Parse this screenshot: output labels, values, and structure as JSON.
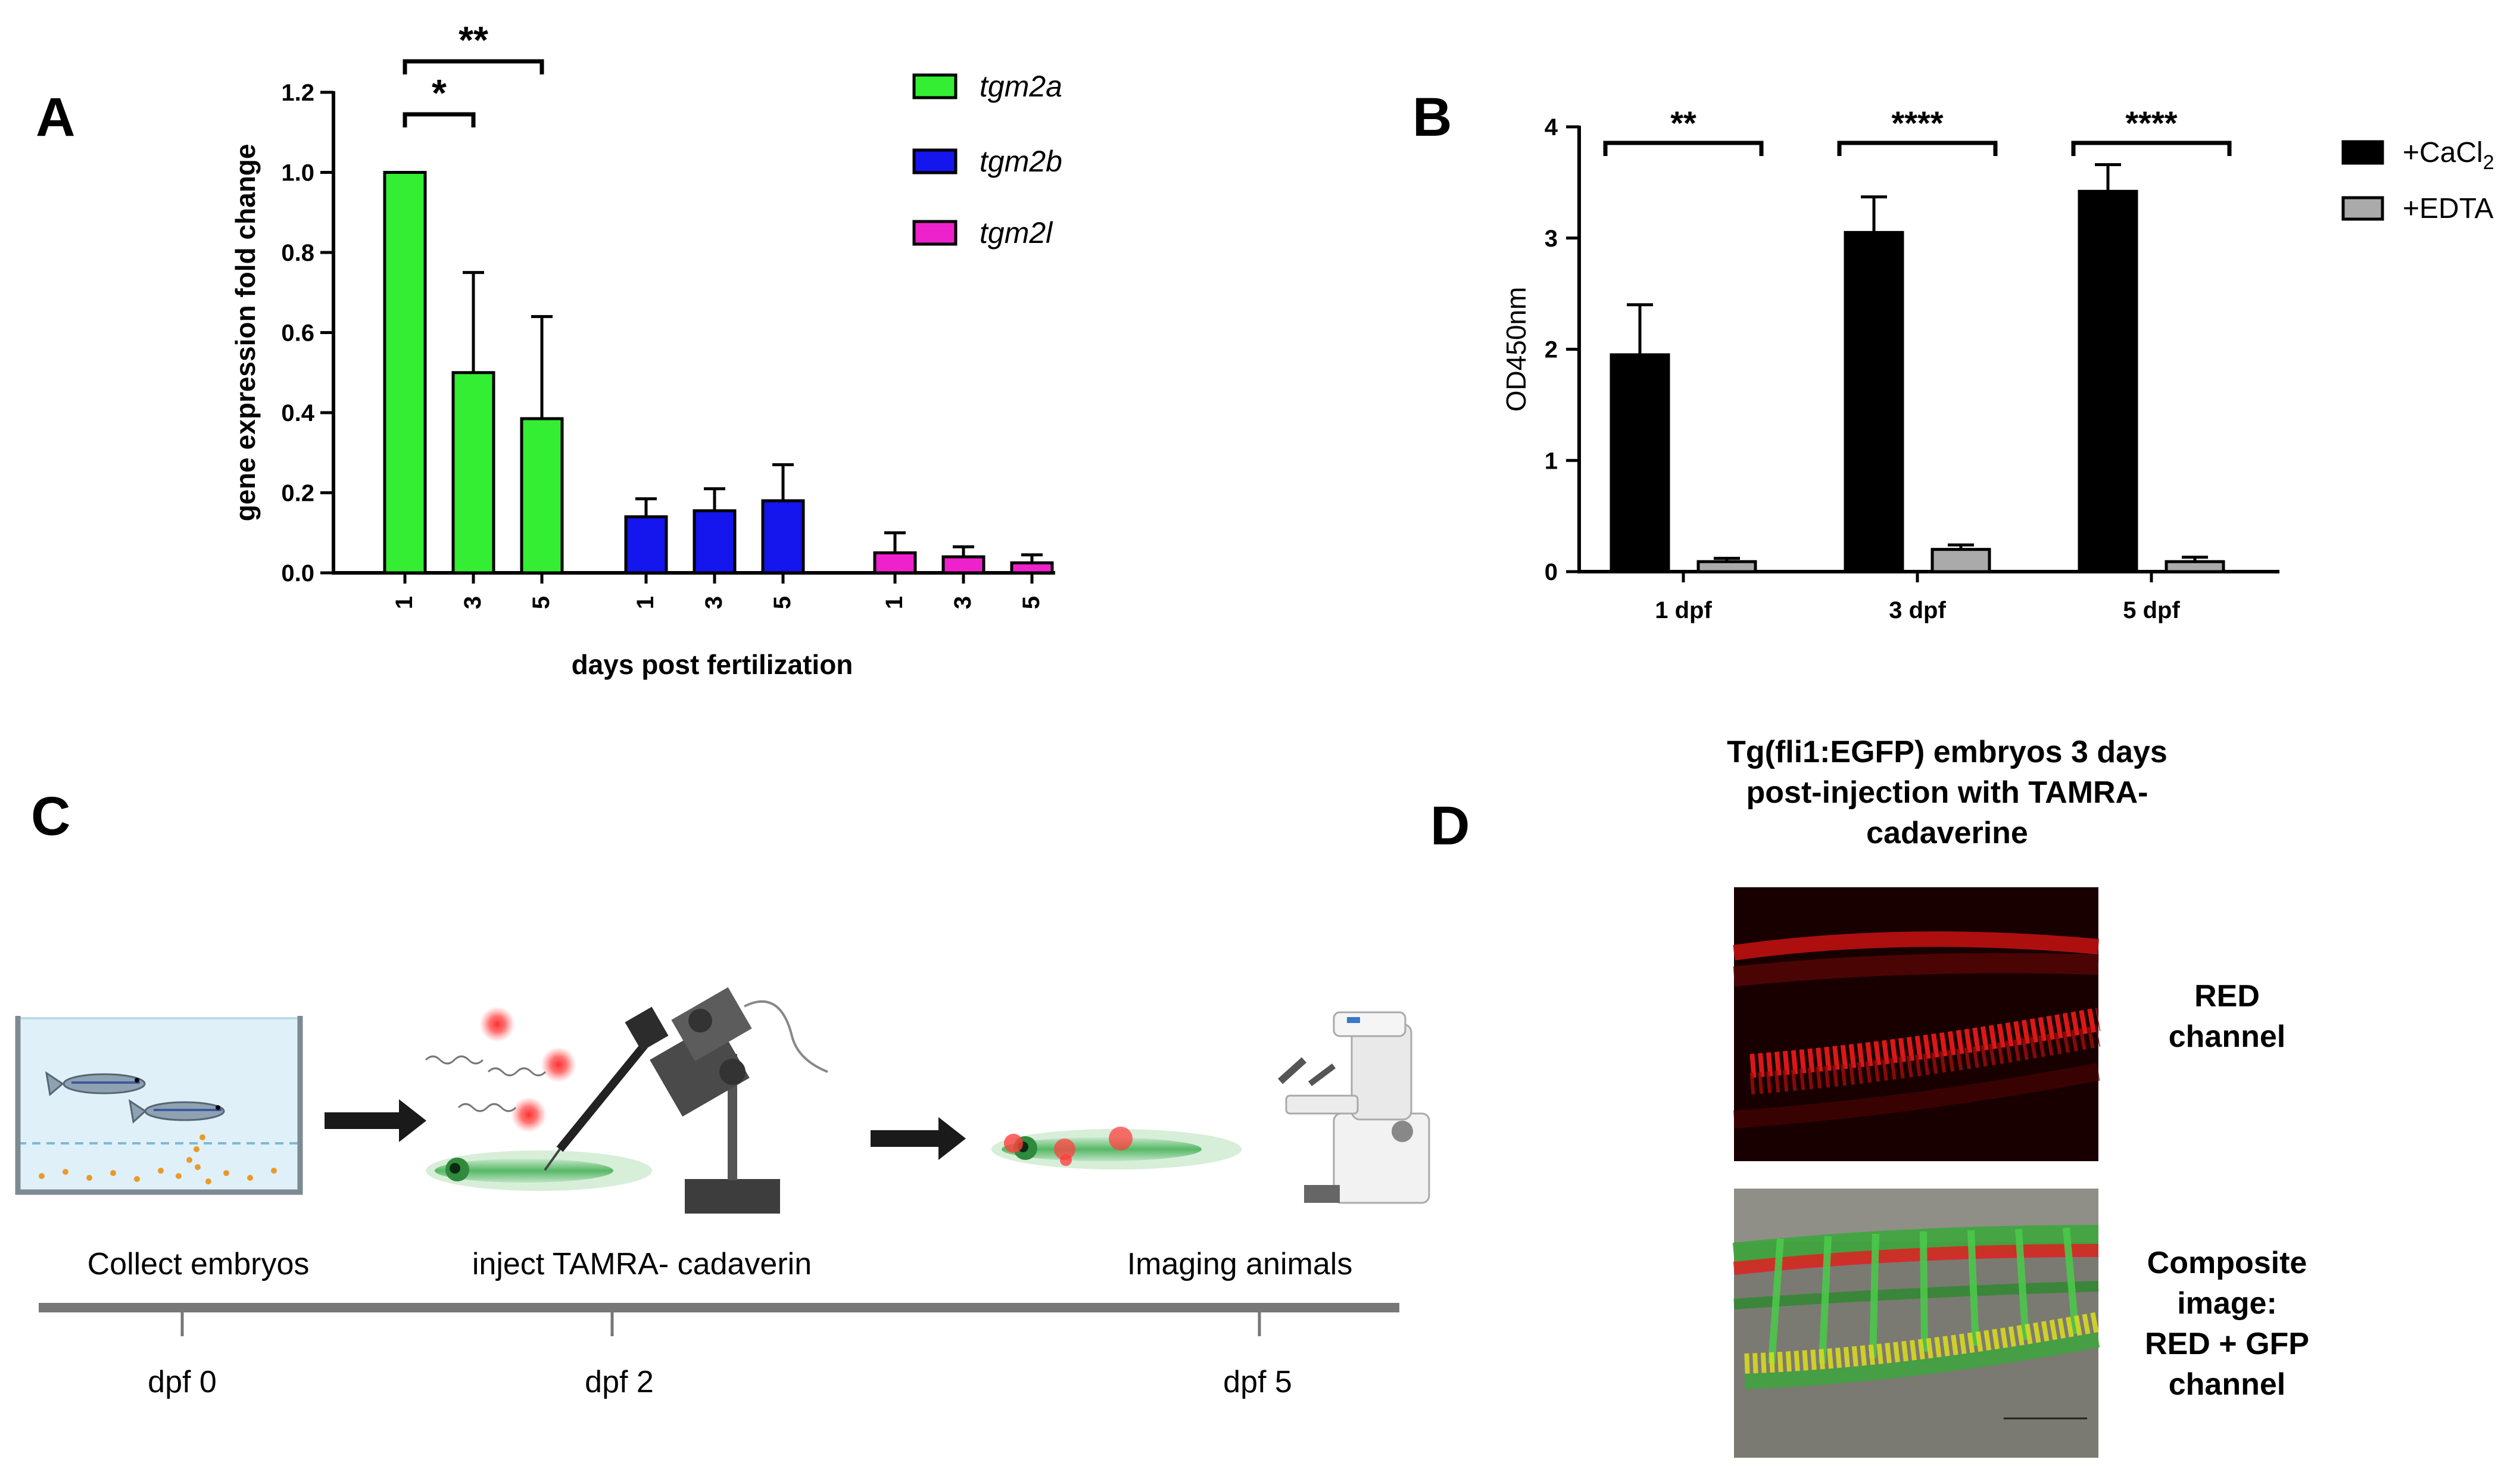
{
  "panels": {
    "a": "A",
    "b": "B",
    "c": "C",
    "d": "D"
  },
  "chart_data": [
    {
      "type": "bar",
      "panel": "A",
      "ylabel": "gene expression fold change",
      "xlabel": "days post fertilization",
      "ylim": [
        0,
        1.2
      ],
      "yticks": [
        "0.0",
        "0.2",
        "0.4",
        "0.6",
        "0.8",
        "1.0",
        "1.2"
      ],
      "grid": false,
      "legend_position": "top-right",
      "groups": [
        {
          "name": "tgm2a",
          "color": "#33ee33",
          "categories": [
            "1",
            "3",
            "5"
          ],
          "values": [
            1.0,
            0.5,
            0.385
          ],
          "errors": [
            0.0,
            0.25,
            0.255
          ]
        },
        {
          "name": "tgm2b",
          "color": "#1515ee",
          "categories": [
            "1",
            "3",
            "5"
          ],
          "values": [
            0.14,
            0.155,
            0.18
          ],
          "errors": [
            0.045,
            0.055,
            0.09
          ]
        },
        {
          "name": "tgm2l",
          "color": "#ee22cc",
          "categories": [
            "1",
            "3",
            "5"
          ],
          "values": [
            0.05,
            0.04,
            0.025
          ],
          "errors": [
            0.05,
            0.025,
            0.02
          ]
        }
      ],
      "significance": [
        {
          "from": "1",
          "to": "3",
          "label": "*"
        },
        {
          "from": "1",
          "to": "5",
          "label": "**"
        }
      ]
    },
    {
      "type": "bar",
      "panel": "B",
      "ylabel": "OD450nm",
      "categories": [
        "1 dpf",
        "3 dpf",
        "5 dpf"
      ],
      "ylim": [
        0,
        4
      ],
      "yticks": [
        "0",
        "1",
        "2",
        "3",
        "4"
      ],
      "grid": false,
      "legend_position": "top-right",
      "series": [
        {
          "name": "+CaCl",
          "name_sub": "2",
          "color": "#000000",
          "values": [
            1.95,
            3.05,
            3.42
          ],
          "errors": [
            0.45,
            0.32,
            0.24
          ]
        },
        {
          "name": "+EDTA",
          "color": "#aaaaaa",
          "values": [
            0.09,
            0.2,
            0.09
          ],
          "errors": [
            0.03,
            0.04,
            0.04
          ]
        }
      ],
      "significance": [
        "**",
        "****",
        "****"
      ]
    }
  ],
  "panel_c": {
    "steps": [
      {
        "label": "Collect embryos",
        "time": "dpf 0"
      },
      {
        "label": "inject TAMRA- cadaverin",
        "time": "dpf 2"
      },
      {
        "label": "Imaging animals",
        "time": "dpf 5"
      }
    ]
  },
  "panel_d": {
    "title_lines": [
      "Tg(fli1:EGFP) embryos 3 days",
      "post-injection with TAMRA-",
      "cadaverine"
    ],
    "red_label_lines": [
      "RED",
      "channel"
    ],
    "composite_label_lines": [
      "Composite",
      "image:",
      "RED + GFP",
      "channel"
    ]
  }
}
